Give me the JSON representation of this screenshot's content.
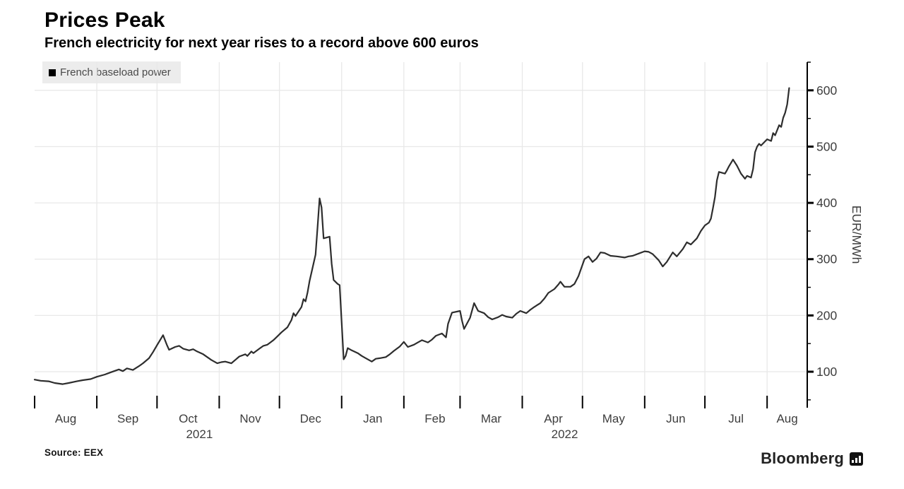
{
  "header": {
    "title": "Prices Peak",
    "subtitle": "French electricity for next year rises to a record above 600 euros"
  },
  "legend": {
    "label": "French baseload power",
    "swatch_color": "#000000",
    "background": "#ececec"
  },
  "footer": {
    "source": "Source: EEX",
    "brand": "Bloomberg"
  },
  "colors": {
    "line": "#2d2d2d",
    "grid": "#e8e8e8",
    "axis": "#000000",
    "tick_label": "#3d3d3d"
  },
  "chart_data": {
    "type": "line",
    "title": "Prices Peak",
    "subtitle": "French electricity for next year rises to a record above 600 euros",
    "ylabel": "EUR/MWh",
    "xlabel": "",
    "legend_position": "top-left",
    "grid": true,
    "y_ticks": [
      100,
      200,
      300,
      400,
      500,
      600
    ],
    "y_minor_step": 50,
    "ylim": [
      36,
      650
    ],
    "x_range": [
      "2021-08-01",
      "2022-08-21"
    ],
    "x_month_labels": [
      "Aug",
      "Sep",
      "Oct",
      "Nov",
      "Dec",
      "Jan",
      "Feb",
      "Mar",
      "Apr",
      "May",
      "Jun",
      "Jul",
      "Aug"
    ],
    "year_labels": [
      {
        "text": "2021",
        "month_index": 2
      },
      {
        "text": "2022",
        "month_index": 8
      }
    ],
    "series": [
      {
        "name": "French baseload power",
        "color": "#2d2d2d",
        "points": [
          [
            "2021-08-01",
            86
          ],
          [
            "2021-08-04",
            84
          ],
          [
            "2021-08-08",
            83
          ],
          [
            "2021-08-11",
            80
          ],
          [
            "2021-08-15",
            78
          ],
          [
            "2021-08-18",
            80
          ],
          [
            "2021-08-22",
            83
          ],
          [
            "2021-08-25",
            85
          ],
          [
            "2021-08-29",
            87
          ],
          [
            "2021-09-01",
            91
          ],
          [
            "2021-09-05",
            95
          ],
          [
            "2021-09-08",
            99
          ],
          [
            "2021-09-12",
            104
          ],
          [
            "2021-09-14",
            101
          ],
          [
            "2021-09-16",
            106
          ],
          [
            "2021-09-19",
            103
          ],
          [
            "2021-09-22",
            110
          ],
          [
            "2021-09-24",
            115
          ],
          [
            "2021-09-27",
            124
          ],
          [
            "2021-09-29",
            135
          ],
          [
            "2021-10-01",
            147
          ],
          [
            "2021-10-04",
            165
          ],
          [
            "2021-10-06",
            147
          ],
          [
            "2021-10-07",
            139
          ],
          [
            "2021-10-10",
            144
          ],
          [
            "2021-10-12",
            146
          ],
          [
            "2021-10-14",
            141
          ],
          [
            "2021-10-17",
            138
          ],
          [
            "2021-10-19",
            140
          ],
          [
            "2021-10-21",
            136
          ],
          [
            "2021-10-24",
            131
          ],
          [
            "2021-10-26",
            126
          ],
          [
            "2021-10-28",
            121
          ],
          [
            "2021-10-31",
            115
          ],
          [
            "2021-11-02",
            117
          ],
          [
            "2021-11-04",
            118
          ],
          [
            "2021-11-07",
            115
          ],
          [
            "2021-11-09",
            121
          ],
          [
            "2021-11-11",
            127
          ],
          [
            "2021-11-14",
            131
          ],
          [
            "2021-11-15",
            128
          ],
          [
            "2021-11-17",
            136
          ],
          [
            "2021-11-18",
            133
          ],
          [
            "2021-11-21",
            141
          ],
          [
            "2021-11-23",
            146
          ],
          [
            "2021-11-25",
            148
          ],
          [
            "2021-11-28",
            156
          ],
          [
            "2021-11-30",
            163
          ],
          [
            "2021-12-02",
            170
          ],
          [
            "2021-12-05",
            179
          ],
          [
            "2021-12-07",
            192
          ],
          [
            "2021-12-08",
            204
          ],
          [
            "2021-12-09",
            199
          ],
          [
            "2021-12-12",
            215
          ],
          [
            "2021-12-13",
            229
          ],
          [
            "2021-12-14",
            225
          ],
          [
            "2021-12-15",
            241
          ],
          [
            "2021-12-16",
            261
          ],
          [
            "2021-12-19",
            308
          ],
          [
            "2021-12-20",
            358
          ],
          [
            "2021-12-21",
            408
          ],
          [
            "2021-12-22",
            392
          ],
          [
            "2021-12-23",
            337
          ],
          [
            "2021-12-26",
            340
          ],
          [
            "2021-12-27",
            292
          ],
          [
            "2021-12-28",
            263
          ],
          [
            "2021-12-30",
            256
          ],
          [
            "2021-12-31",
            254
          ],
          [
            "2022-01-02",
            122
          ],
          [
            "2022-01-03",
            128
          ],
          [
            "2022-01-04",
            142
          ],
          [
            "2022-01-06",
            138
          ],
          [
            "2022-01-09",
            133
          ],
          [
            "2022-01-11",
            128
          ],
          [
            "2022-01-13",
            124
          ],
          [
            "2022-01-16",
            118
          ],
          [
            "2022-01-18",
            123
          ],
          [
            "2022-01-20",
            124
          ],
          [
            "2022-01-23",
            126
          ],
          [
            "2022-01-25",
            131
          ],
          [
            "2022-01-27",
            137
          ],
          [
            "2022-01-30",
            145
          ],
          [
            "2022-02-01",
            153
          ],
          [
            "2022-02-03",
            144
          ],
          [
            "2022-02-06",
            148
          ],
          [
            "2022-02-08",
            152
          ],
          [
            "2022-02-10",
            156
          ],
          [
            "2022-02-13",
            152
          ],
          [
            "2022-02-15",
            157
          ],
          [
            "2022-02-17",
            164
          ],
          [
            "2022-02-20",
            168
          ],
          [
            "2022-02-22",
            161
          ],
          [
            "2022-02-23",
            185
          ],
          [
            "2022-02-25",
            205
          ],
          [
            "2022-03-01",
            208
          ],
          [
            "2022-03-02",
            190
          ],
          [
            "2022-03-03",
            176
          ],
          [
            "2022-03-06",
            196
          ],
          [
            "2022-03-08",
            222
          ],
          [
            "2022-03-09",
            215
          ],
          [
            "2022-03-10",
            208
          ],
          [
            "2022-03-13",
            204
          ],
          [
            "2022-03-15",
            197
          ],
          [
            "2022-03-17",
            193
          ],
          [
            "2022-03-20",
            197
          ],
          [
            "2022-03-22",
            201
          ],
          [
            "2022-03-24",
            198
          ],
          [
            "2022-03-27",
            196
          ],
          [
            "2022-03-29",
            203
          ],
          [
            "2022-03-31",
            208
          ],
          [
            "2022-04-03",
            204
          ],
          [
            "2022-04-05",
            210
          ],
          [
            "2022-04-07",
            215
          ],
          [
            "2022-04-10",
            222
          ],
          [
            "2022-04-12",
            230
          ],
          [
            "2022-04-14",
            240
          ],
          [
            "2022-04-17",
            247
          ],
          [
            "2022-04-19",
            255
          ],
          [
            "2022-04-20",
            260
          ],
          [
            "2022-04-22",
            251
          ],
          [
            "2022-04-25",
            251
          ],
          [
            "2022-04-27",
            256
          ],
          [
            "2022-04-29",
            270
          ],
          [
            "2022-05-02",
            300
          ],
          [
            "2022-05-04",
            305
          ],
          [
            "2022-05-06",
            295
          ],
          [
            "2022-05-08",
            301
          ],
          [
            "2022-05-10",
            312
          ],
          [
            "2022-05-12",
            311
          ],
          [
            "2022-05-15",
            306
          ],
          [
            "2022-05-18",
            305
          ],
          [
            "2022-05-22",
            303
          ],
          [
            "2022-05-24",
            305
          ],
          [
            "2022-05-26",
            306
          ],
          [
            "2022-05-29",
            310
          ],
          [
            "2022-06-01",
            314
          ],
          [
            "2022-06-03",
            313
          ],
          [
            "2022-06-05",
            309
          ],
          [
            "2022-06-08",
            298
          ],
          [
            "2022-06-10",
            287
          ],
          [
            "2022-06-12",
            295
          ],
          [
            "2022-06-15",
            312
          ],
          [
            "2022-06-17",
            305
          ],
          [
            "2022-06-20",
            318
          ],
          [
            "2022-06-22",
            330
          ],
          [
            "2022-06-24",
            326
          ],
          [
            "2022-06-27",
            337
          ],
          [
            "2022-06-29",
            350
          ],
          [
            "2022-07-01",
            360
          ],
          [
            "2022-07-03",
            365
          ],
          [
            "2022-07-04",
            372
          ],
          [
            "2022-07-05",
            390
          ],
          [
            "2022-07-06",
            410
          ],
          [
            "2022-07-07",
            440
          ],
          [
            "2022-07-08",
            455
          ],
          [
            "2022-07-11",
            452
          ],
          [
            "2022-07-12",
            458
          ],
          [
            "2022-07-13",
            465
          ],
          [
            "2022-07-15",
            477
          ],
          [
            "2022-07-17",
            466
          ],
          [
            "2022-07-19",
            452
          ],
          [
            "2022-07-21",
            443
          ],
          [
            "2022-07-22",
            448
          ],
          [
            "2022-07-24",
            445
          ],
          [
            "2022-07-25",
            460
          ],
          [
            "2022-07-26",
            490
          ],
          [
            "2022-07-27",
            500
          ],
          [
            "2022-07-28",
            505
          ],
          [
            "2022-07-29",
            502
          ],
          [
            "2022-08-01",
            513
          ],
          [
            "2022-08-03",
            510
          ],
          [
            "2022-08-04",
            524
          ],
          [
            "2022-08-05",
            520
          ],
          [
            "2022-08-07",
            538
          ],
          [
            "2022-08-08",
            535
          ],
          [
            "2022-08-09",
            551
          ],
          [
            "2022-08-10",
            560
          ],
          [
            "2022-08-11",
            575
          ],
          [
            "2022-08-12",
            604
          ]
        ]
      }
    ]
  }
}
